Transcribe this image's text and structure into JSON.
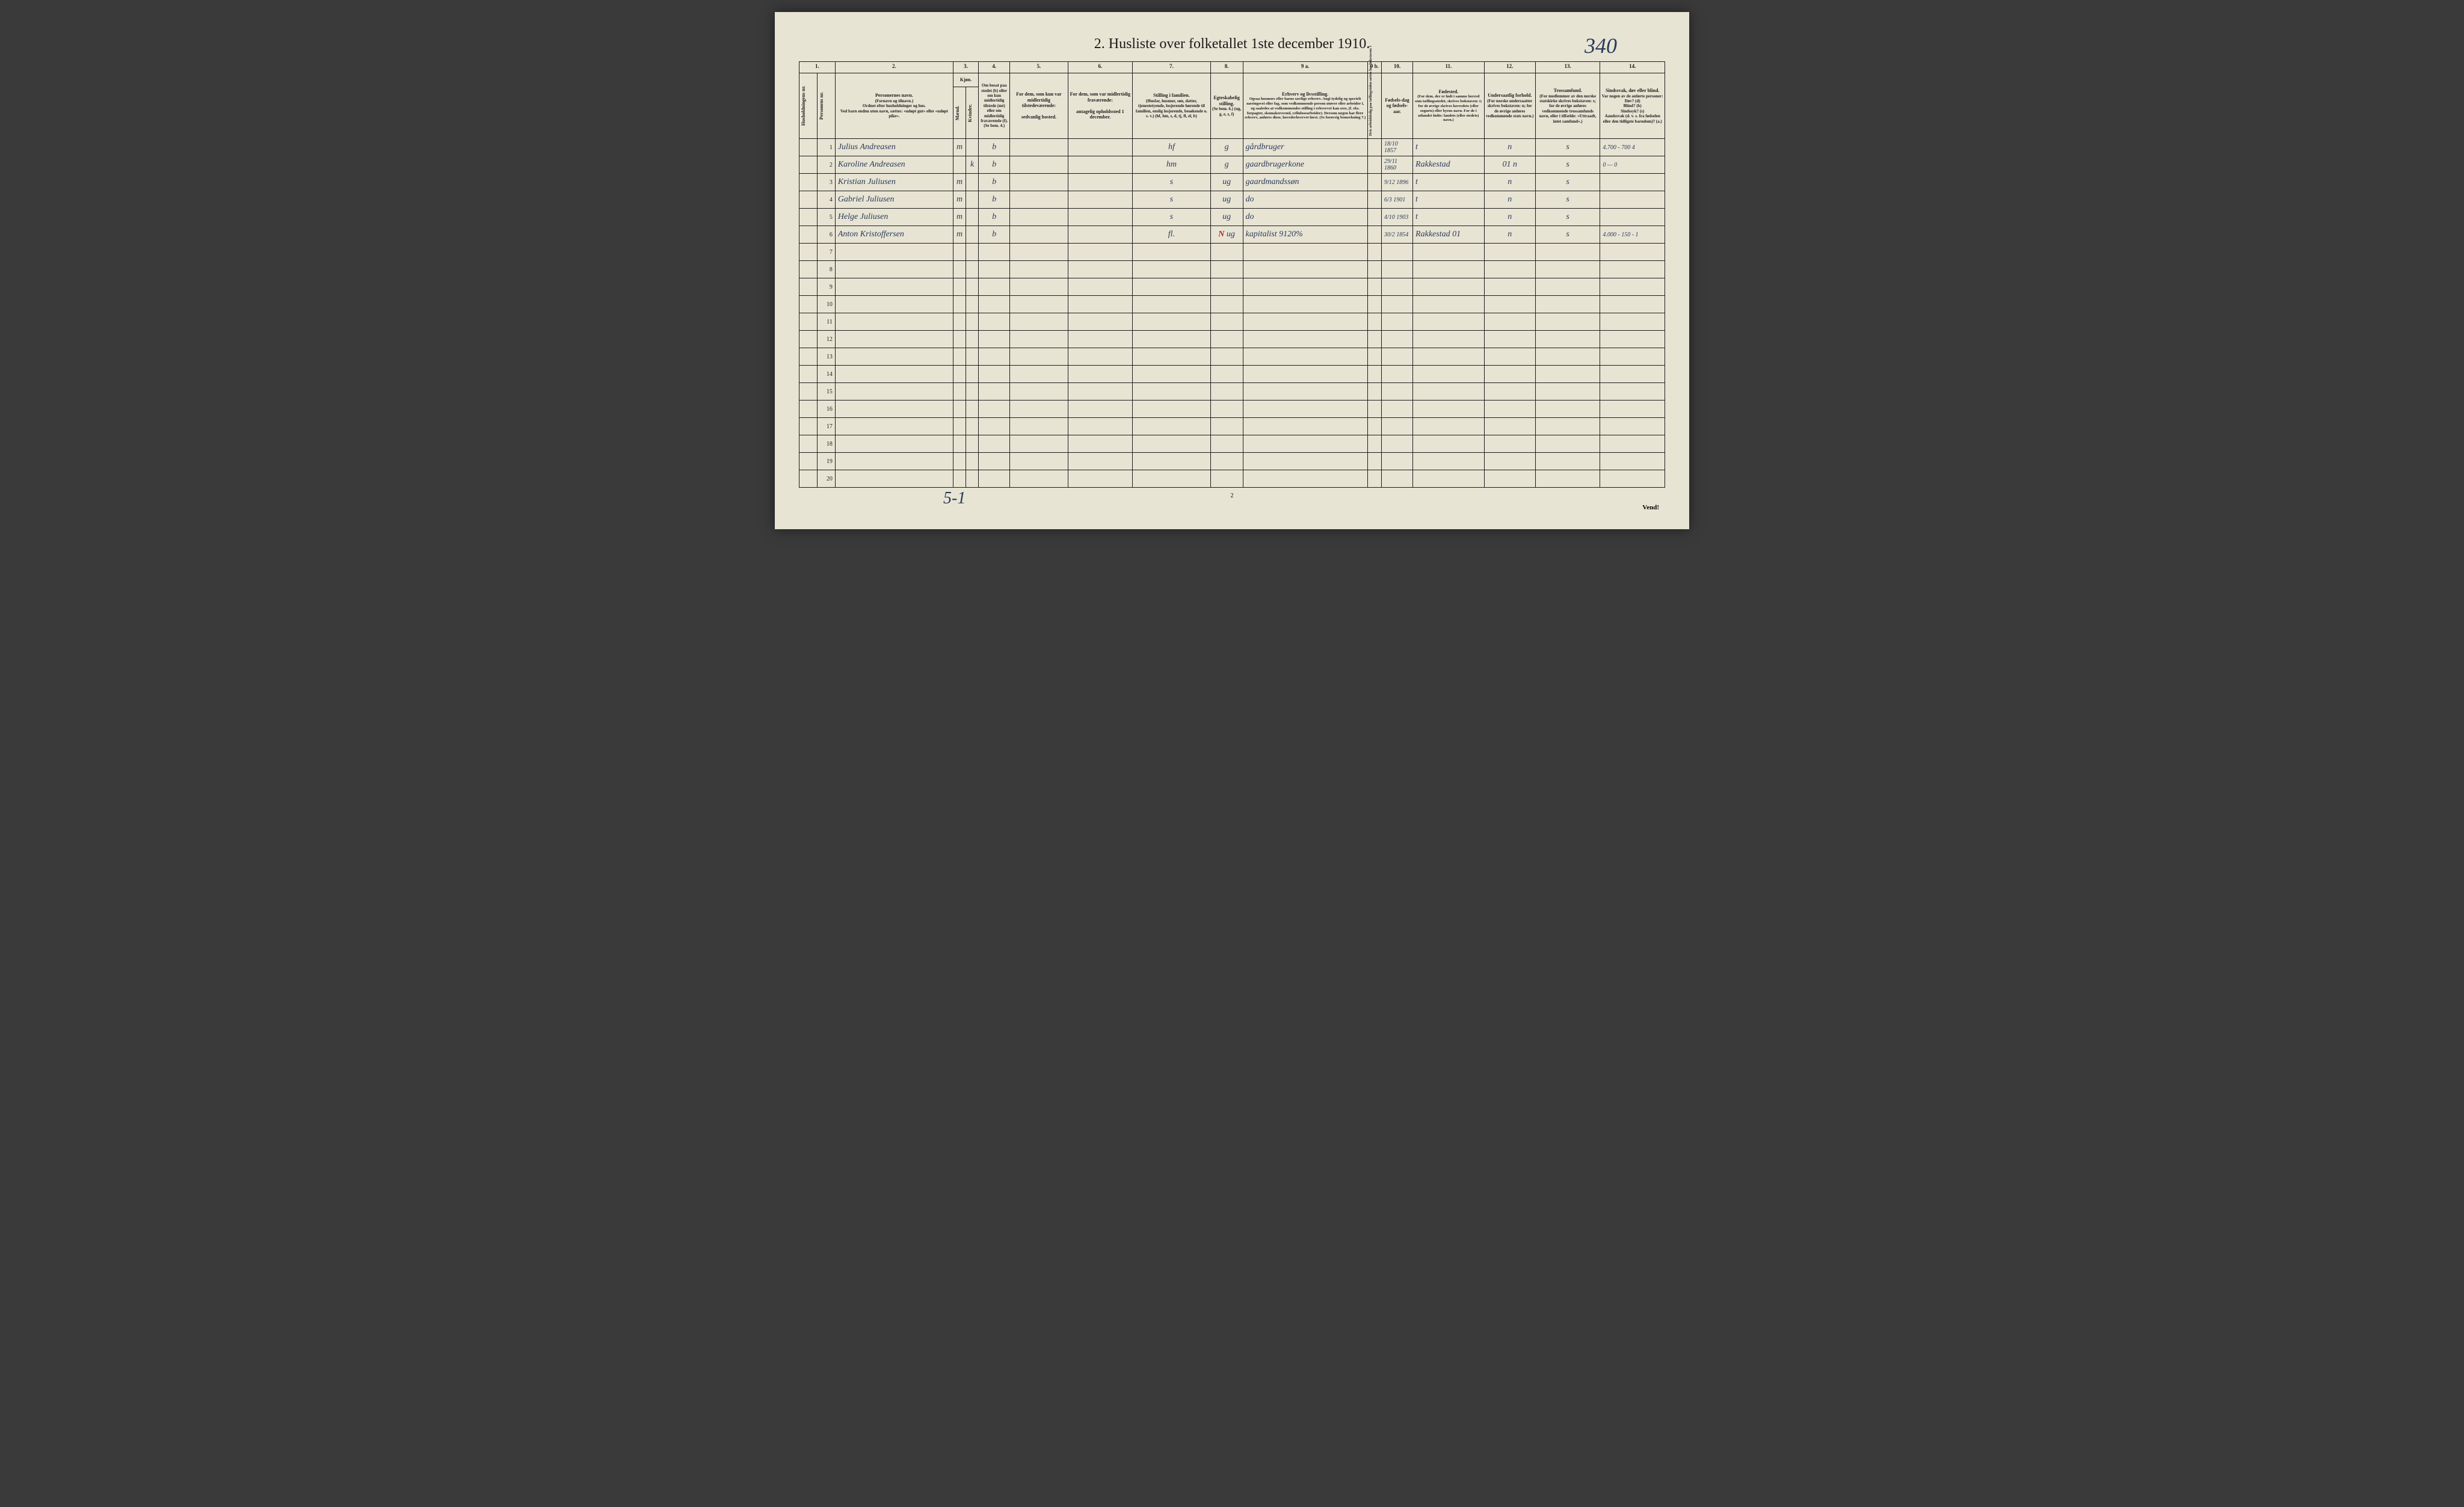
{
  "titleNumber": "2.",
  "title": "Husliste over folketallet 1ste december 1910.",
  "handwrittenPageNumber": "340",
  "bottomHandwritten": "5-1",
  "footerPageNum": "2",
  "vendText": "Vend!",
  "columnNumbers": [
    "1.",
    "2.",
    "3.",
    "4.",
    "5.",
    "6.",
    "7.",
    "8.",
    "9 a.",
    "9 b.",
    "10.",
    "11.",
    "12.",
    "13.",
    "14."
  ],
  "headers": {
    "col1a": "Husholdningens nr.",
    "col1b": "Personens nr.",
    "col2_title": "Personernes navn.",
    "col2_sub": "(Fornavn og tilnavn.)\nOrdnet efter husholdninger og hus.\nVed barn endnu uten navn, sættes: «udøpt gut» eller «udøpt pike».",
    "col3_title": "Kjøn.",
    "col3_m": "Mænd.",
    "col3_k": "Kvinder.",
    "col3_mk": "m. k.",
    "col4": "Om bosat paa stedet (b) eller om kun midlertidig tilstede (mt) eller om midlertidig fraværende (f). (Se bem. 4.)",
    "col5": "For dem, som kun var midlertidig tilstedeværende:\n\nsedvanlig bosted.",
    "col6": "For dem, som var midlertidig fraværende:\n\nantagelig opholdssted 1 december.",
    "col7_title": "Stilling i familien.",
    "col7_sub": "(Husfar, husmor, søn, datter, tjenestetyende, losjerende hørende til familien, enslig losjerende, besøkende o. s. v.)\n(hf, hm, s, d, tj, fl, el, b)",
    "col8_title": "Egteskabelig stilling.",
    "col8_sub": "(Se bem. 6.)\n(ug, g, e, s, f)",
    "col9a_title": "Erhverv og livsstilling.",
    "col9a_sub": "Ogsaa husmors eller barns særlige erhverv.\nAngi tydelig og specielt næringsvei eller fag, som vedkommende person utøver eller arbeider i, og saaledes at vedkommendes stilling i erhvervet kan sees, (f. eks. forpagter, skomakersvend, cellulosearbeider). Dersom nogen har flere erhverv, anføres disse, hovederhvervet først.\n(Se forøvrig bemerkning 7.)",
    "col9b": "Hvis arbeidsledig paa tællingstiden sættes her bokstaven: l",
    "col10": "Fødsels-dag og fødsels-aar.",
    "col11_title": "Fødested.",
    "col11_sub": "(For dem, der er født i samme herred som tællingsstedet, skrives bokstaven: t; for de øvrige skrives herredets (eller sognets) eller byens navn. For de i utlandet fødte: landets (eller stedets) navn.)",
    "col12_title": "Undersaatlig forhold.",
    "col12_sub": "(For norske undersaatter skrives bokstaven: n; for de øvrige anføres vedkommende stats navn.)",
    "col13_title": "Trossamfund.",
    "col13_sub": "(For medlemmer av den norske statskirke skrives bokstaven: s; for de øvrige anføres vedkommende trossamfunds navn, eller i tilfælde: «Uttraadt, intet samfund».)",
    "col14_title": "Sindssvak, døv eller blind.",
    "col14_sub": "Var nogen av de anførte personer:\nDøv? (d)\nBlind? (b)\nSindssyk? (s)\nAandssvak (d. v. s. fra fødselen eller den tidligste barndom)? (a.)"
  },
  "rows": [
    {
      "num": "1",
      "name": "Julius Andreasen",
      "sex": "m",
      "bosat": "b",
      "midl": "",
      "frav": "",
      "stilling": "hf",
      "egte": "g",
      "erhverv": "gårdbruger",
      "selv": "",
      "fodsel": "18/10 1857",
      "fodested": "t",
      "under": "n",
      "tros": "s",
      "sinds": "4.700 - 700 4"
    },
    {
      "num": "2",
      "name": "Karoline Andreasen",
      "sex": "k",
      "bosat": "b",
      "midl": "",
      "frav": "",
      "stilling": "hm",
      "egte": "g",
      "erhverv": "gaardbrugerkone",
      "selv": "",
      "fodsel": "29/11 1860",
      "fodested": "Rakkestad",
      "under": "01 n",
      "tros": "s",
      "sinds": "0 — 0"
    },
    {
      "num": "3",
      "name": "Kristian Juliusen",
      "sex": "m",
      "bosat": "b",
      "midl": "",
      "frav": "",
      "stilling": "s",
      "egte": "ug",
      "erhverv": "gaardmandssøn",
      "selv": "",
      "fodsel": "9/12 1896",
      "fodested": "t",
      "under": "n",
      "tros": "s",
      "sinds": ""
    },
    {
      "num": "4",
      "name": "Gabriel Juliusen",
      "sex": "m",
      "bosat": "b",
      "midl": "",
      "frav": "",
      "stilling": "s",
      "egte": "ug",
      "erhverv": "do",
      "selv": "",
      "fodsel": "6/3 1901",
      "fodested": "t",
      "under": "n",
      "tros": "s",
      "sinds": ""
    },
    {
      "num": "5",
      "name": "Helge Juliusen",
      "sex": "m",
      "bosat": "b",
      "midl": "",
      "frav": "",
      "stilling": "s",
      "egte": "ug",
      "erhverv": "do",
      "selv": "",
      "fodsel": "4/10 1903",
      "fodested": "t",
      "under": "n",
      "tros": "s",
      "sinds": ""
    },
    {
      "num": "6",
      "name": "Anton Kristoffersen",
      "sex": "m",
      "bosat": "b",
      "midl": "",
      "frav": "",
      "stilling": "fl.",
      "egte": "ug",
      "erhverv": "kapitalist   9120%",
      "selv": "",
      "fodsel": "30/2 1854",
      "fodested": "Rakkestad 01",
      "under": "n",
      "tros": "s",
      "sinds": "4.000 - 150 - 1"
    }
  ],
  "emptyRows": [
    "7",
    "8",
    "9",
    "10",
    "11",
    "12",
    "13",
    "14",
    "15",
    "16",
    "17",
    "18",
    "19",
    "20"
  ],
  "row6RedMark": "N"
}
